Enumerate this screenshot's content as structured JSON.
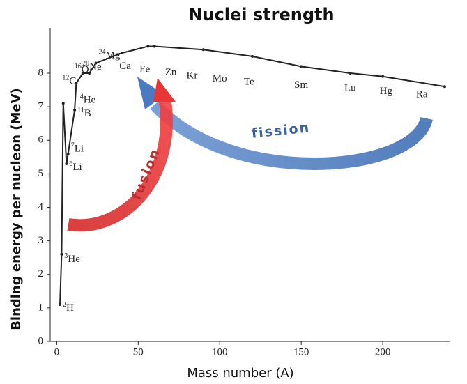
{
  "chart_data": {
    "type": "line",
    "title": "Nuclei strength",
    "x_label": "Mass number (A)",
    "y_label": "Binding energy per nucleon (MeV)",
    "xlim": [
      -4,
      241
    ],
    "ylim": [
      0,
      9.35
    ],
    "xticks": [
      0,
      50,
      100,
      150,
      200
    ],
    "yticks": [
      0,
      1,
      2,
      3,
      4,
      5,
      6,
      7,
      8
    ],
    "grid": false,
    "x": [
      2,
      3,
      4,
      6,
      7,
      11,
      12,
      16,
      20,
      24,
      40,
      56,
      60,
      90,
      120,
      150,
      180,
      200,
      238
    ],
    "series": [
      {
        "color": "#222222",
        "values": [
          1.1,
          2.6,
          7.1,
          5.3,
          5.6,
          6.9,
          7.7,
          8.0,
          8.0,
          8.3,
          8.6,
          8.8,
          8.8,
          8.7,
          8.5,
          8.2,
          8.0,
          7.9,
          7.6
        ],
        "point_labels": [
          "H",
          "He",
          "He",
          "Li",
          "Li",
          "B",
          "C",
          "O",
          "Ne",
          "Mg",
          null,
          null,
          null,
          null,
          null,
          null,
          null,
          null,
          null
        ],
        "point_label_mass": [
          "2",
          "3",
          "4",
          "6",
          "7",
          "11",
          "12",
          "16",
          "20",
          "24",
          null,
          null,
          null,
          null,
          null,
          null,
          null,
          null,
          null
        ]
      }
    ],
    "element_labels": [
      {
        "x": 42,
        "label": "Ca",
        "color": "#222222"
      },
      {
        "x": 54,
        "label": "Fe",
        "color": "#222222"
      },
      {
        "x": 70,
        "label": "Zn",
        "color": "#222222"
      },
      {
        "x": 83,
        "label": "Kr",
        "color": "#222222"
      },
      {
        "x": 100,
        "label": "Mo",
        "color": "#222222"
      },
      {
        "x": 118,
        "label": "Te",
        "color": "#555555"
      },
      {
        "x": 150,
        "label": "Sm",
        "color": "#777777"
      },
      {
        "x": 180,
        "label": "Lu",
        "color": "#555555"
      },
      {
        "x": 202,
        "label": "Hg",
        "color": "#222222"
      },
      {
        "x": 224,
        "label": "Ra",
        "color": "#222222"
      }
    ],
    "annotations": [
      {
        "text": "fusion",
        "color": "#b83030"
      },
      {
        "text": "fission",
        "color": "#3a62a0"
      }
    ]
  }
}
